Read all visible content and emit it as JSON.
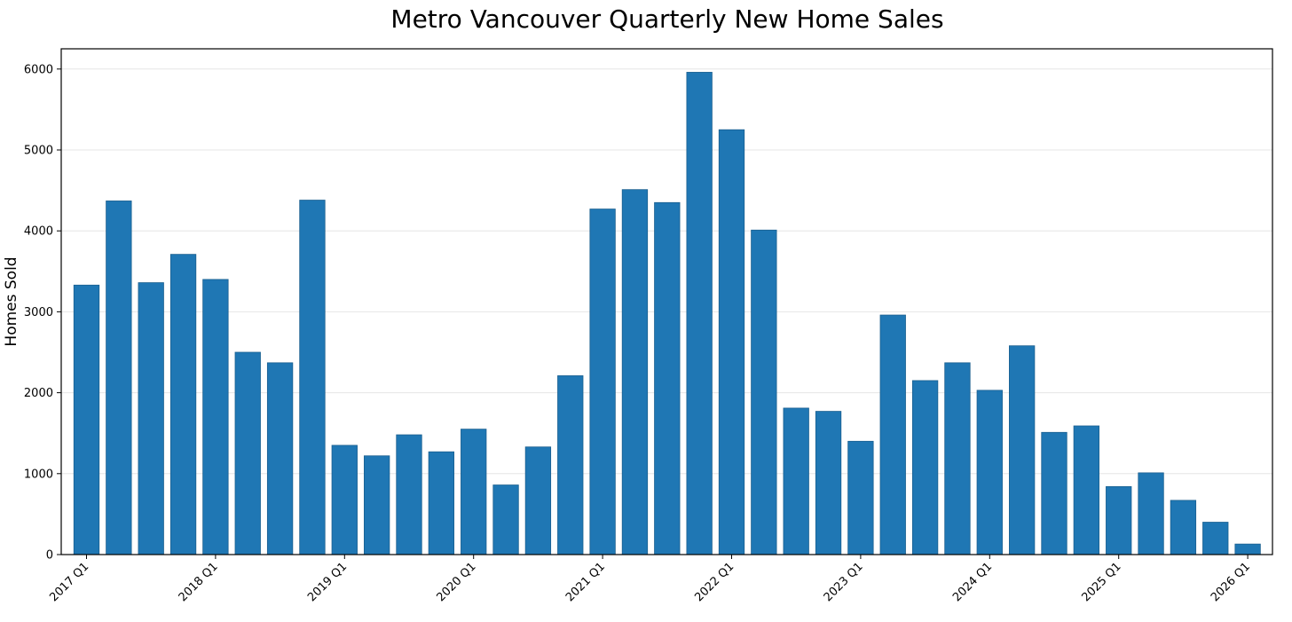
{
  "chart_data": {
    "type": "bar",
    "title": "Metro Vancouver Quarterly New Home Sales",
    "xlabel": "",
    "ylabel": "Homes Sold",
    "ylim": [
      0,
      6250
    ],
    "yticks": [
      0,
      1000,
      2000,
      3000,
      4000,
      5000,
      6000
    ],
    "grid": "horizontal",
    "bar_color": "#1f77b4",
    "categories": [
      "2017 Q1",
      "2017 Q2",
      "2017 Q3",
      "2017 Q4",
      "2018 Q1",
      "2018 Q2",
      "2018 Q3",
      "2018 Q4",
      "2019 Q1",
      "2019 Q2",
      "2019 Q3",
      "2019 Q4",
      "2020 Q1",
      "2020 Q2",
      "2020 Q3",
      "2020 Q4",
      "2021 Q1",
      "2021 Q2",
      "2021 Q3",
      "2021 Q4",
      "2022 Q1",
      "2022 Q2",
      "2022 Q3",
      "2022 Q4",
      "2023 Q1",
      "2023 Q2",
      "2023 Q3",
      "2023 Q4",
      "2024 Q1",
      "2024 Q2",
      "2024 Q3",
      "2024 Q4",
      "2025 Q1",
      "2025 Q2",
      "2025 Q3",
      "2025 Q4",
      "2026 Q1"
    ],
    "values": [
      3330,
      4370,
      3360,
      3710,
      3400,
      2500,
      2370,
      4380,
      1350,
      1220,
      1480,
      1270,
      1550,
      860,
      1330,
      2210,
      4270,
      4510,
      4350,
      5960,
      5250,
      4010,
      1810,
      1770,
      1400,
      2960,
      2150,
      2370,
      2030,
      2580,
      1510,
      1590,
      840,
      1010,
      670,
      400,
      130
    ],
    "xtick_labels": [
      "2017 Q1",
      "2018 Q1",
      "2019 Q1",
      "2020 Q1",
      "2021 Q1",
      "2022 Q1",
      "2023 Q1",
      "2024 Q1",
      "2025 Q1",
      "2026 Q1"
    ]
  }
}
